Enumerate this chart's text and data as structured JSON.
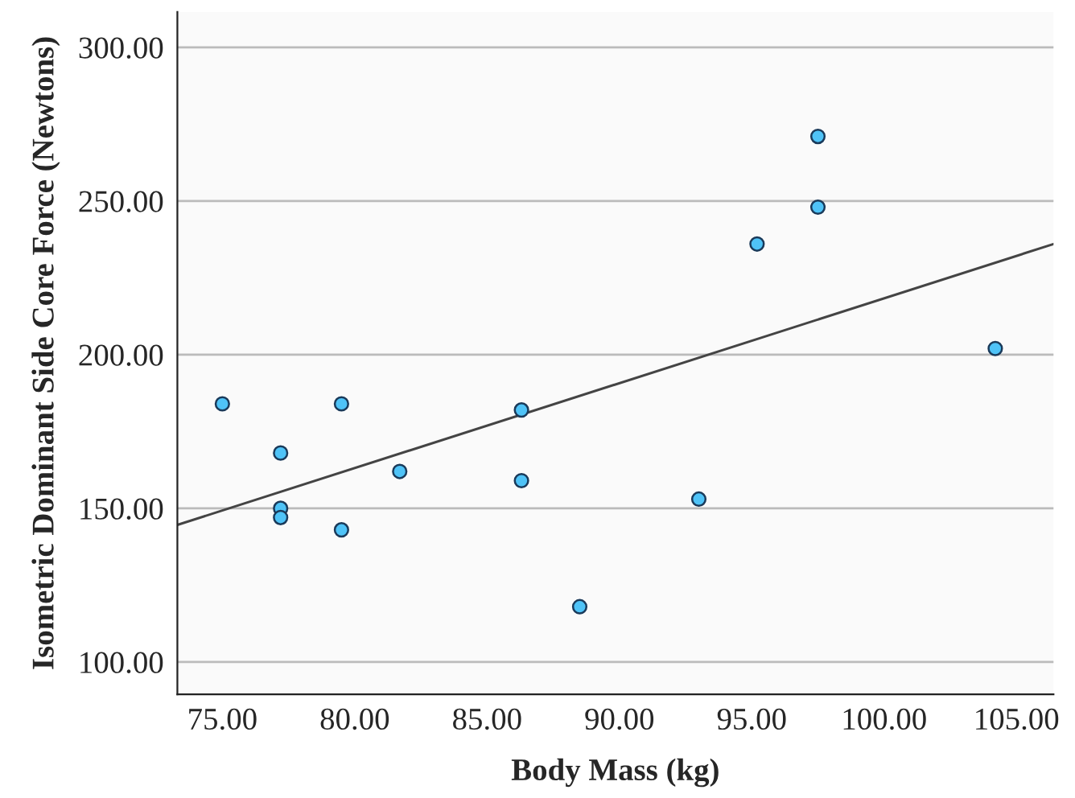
{
  "chart_data": {
    "type": "scatter",
    "xlabel": "Body Mass (kg)",
    "ylabel": "Isometric Dominant Side Core Force (Newtons)",
    "xlim": [
      73.3,
      106.4
    ],
    "ylim": [
      89.5,
      311.5
    ],
    "xticks": [
      {
        "value": 75,
        "label": "75.00"
      },
      {
        "value": 80,
        "label": "80.00"
      },
      {
        "value": 85,
        "label": "85.00"
      },
      {
        "value": 90,
        "label": "90.00"
      },
      {
        "value": 95,
        "label": "95.00"
      },
      {
        "value": 100,
        "label": "100.00"
      },
      {
        "value": 105,
        "label": "105.00"
      }
    ],
    "yticks": [
      {
        "value": 100,
        "label": "100.00"
      },
      {
        "value": 150,
        "label": "150.00"
      },
      {
        "value": 200,
        "label": "200.00"
      },
      {
        "value": 250,
        "label": "250.00"
      },
      {
        "value": 300,
        "label": "300.00"
      }
    ],
    "grid": "y",
    "series": [
      {
        "marker": "circle",
        "color": "#4fc3f7",
        "x": [
          75.0,
          77.2,
          77.2,
          77.2,
          79.5,
          79.5,
          81.7,
          86.3,
          86.3,
          88.5,
          93.0,
          95.2,
          97.5,
          97.5,
          104.2
        ],
        "values": [
          184,
          168,
          150,
          147,
          184,
          143,
          162,
          182,
          159,
          118,
          153,
          236,
          271,
          248,
          202
        ]
      },
      {
        "type": "line",
        "color": "#444444",
        "x": [
          73.3,
          106.4
        ],
        "values": [
          144.6,
          236
        ]
      }
    ]
  }
}
